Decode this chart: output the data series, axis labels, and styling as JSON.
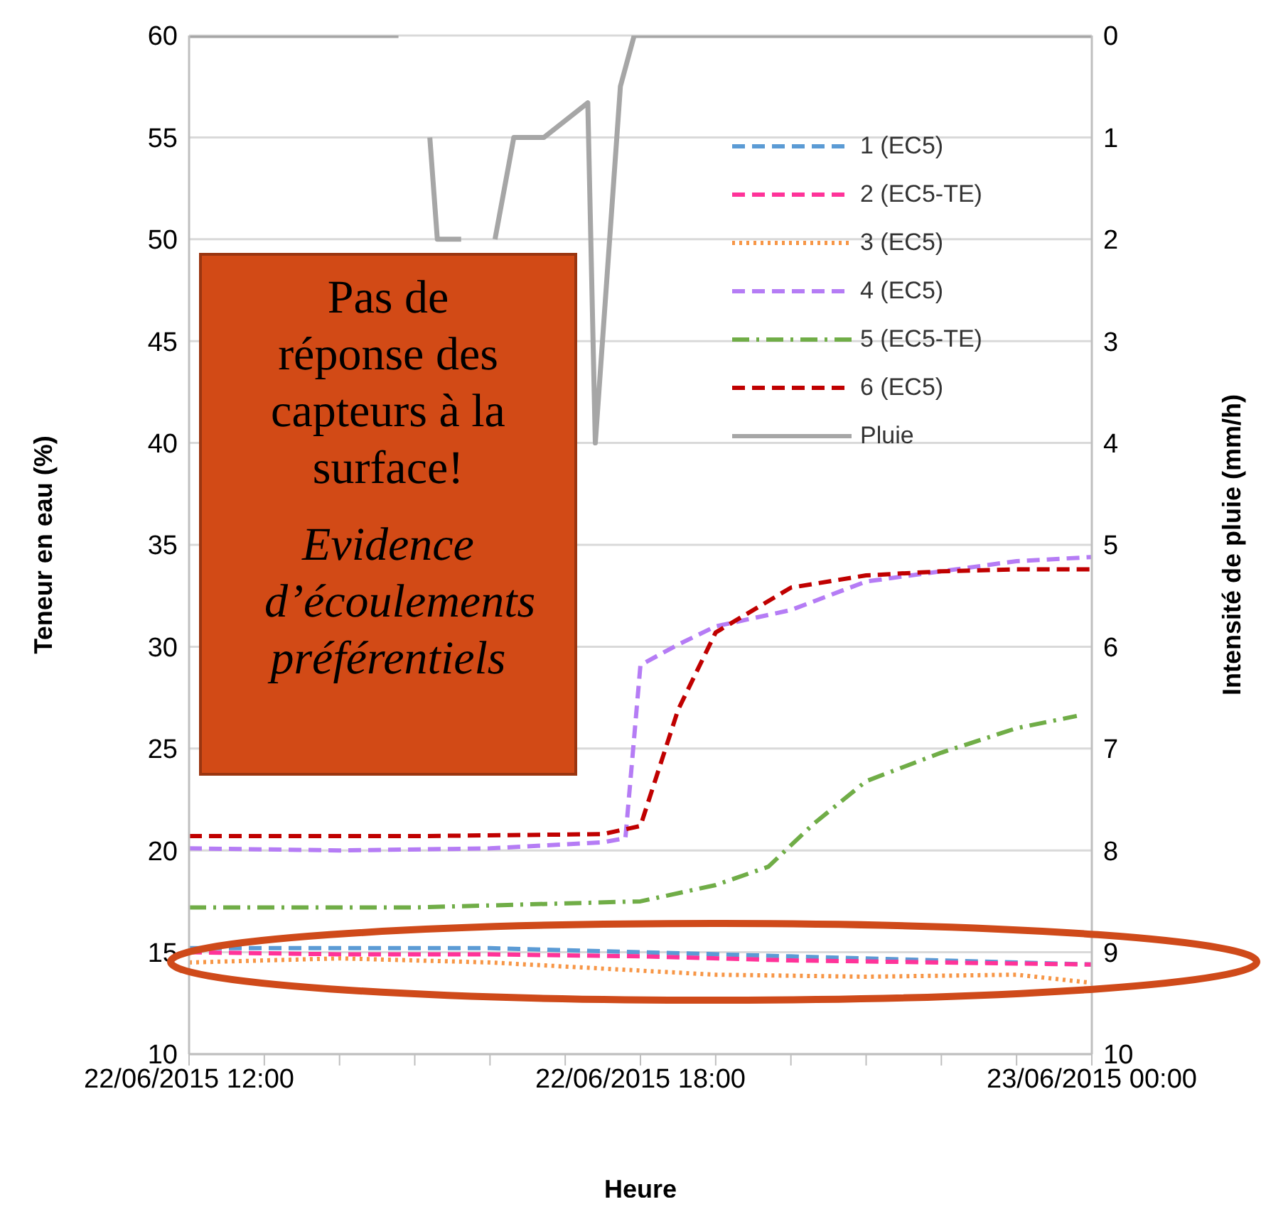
{
  "chart_data": {
    "type": "line",
    "xlabel": "Heure",
    "ylabel": "Teneur en eau (%)",
    "y2label": "Intensité de pluie (mm/h)",
    "xlim": [
      "2015-06-22T12:00",
      "2015-06-23T00:00"
    ],
    "xticks": [
      {
        "value": "2015-06-22T12:00",
        "label": "22/06/2015 12:00"
      },
      {
        "value": "2015-06-22T13:00",
        "label": null
      },
      {
        "value": "2015-06-22T14:00",
        "label": null
      },
      {
        "value": "2015-06-22T15:00",
        "label": null
      },
      {
        "value": "2015-06-22T16:00",
        "label": null
      },
      {
        "value": "2015-06-22T17:00",
        "label": null
      },
      {
        "value": "2015-06-22T18:00",
        "label": "22/06/2015 18:00"
      },
      {
        "value": "2015-06-22T19:00",
        "label": null
      },
      {
        "value": "2015-06-22T20:00",
        "label": null
      },
      {
        "value": "2015-06-22T21:00",
        "label": null
      },
      {
        "value": "2015-06-22T22:00",
        "label": null
      },
      {
        "value": "2015-06-22T23:00",
        "label": null
      },
      {
        "value": "2015-06-23T00:00",
        "label": "23/06/2015 00:00"
      }
    ],
    "ylim": [
      10,
      60
    ],
    "yticks": [
      10,
      15,
      20,
      25,
      30,
      35,
      40,
      45,
      50,
      55,
      60
    ],
    "y2lim": [
      10,
      0
    ],
    "y2ticks": [
      0,
      1,
      2,
      3,
      4,
      5,
      6,
      7,
      8,
      9,
      10
    ],
    "grid": "y",
    "legend": "top right",
    "marker": "none",
    "series": [
      {
        "name": "1 (EC5)",
        "color": "#5b9bd5",
        "line_style": "dashed",
        "x": [
          "2015-06-22T12:00",
          "2015-06-22T14:00",
          "2015-06-22T16:00",
          "2015-06-22T18:00",
          "2015-06-22T20:00",
          "2015-06-22T22:00",
          "2015-06-23T00:00"
        ],
        "values": [
          15.2,
          15.2,
          15.2,
          15.0,
          14.8,
          14.6,
          14.4
        ]
      },
      {
        "name": "2 (EC5-TE)",
        "color": "#ff3399",
        "line_style": "dashed",
        "x": [
          "2015-06-22T12:00",
          "2015-06-22T14:00",
          "2015-06-22T16:00",
          "2015-06-22T18:00",
          "2015-06-22T20:00",
          "2015-06-22T22:00",
          "2015-06-23T00:00"
        ],
        "values": [
          15.0,
          14.9,
          14.9,
          14.8,
          14.6,
          14.5,
          14.4
        ]
      },
      {
        "name": "3 (EC5)",
        "color": "#f79646",
        "line_style": "dotted",
        "x": [
          "2015-06-22T12:00",
          "2015-06-22T14:00",
          "2015-06-22T16:00",
          "2015-06-22T17:00",
          "2015-06-22T19:00",
          "2015-06-22T21:00",
          "2015-06-22T23:00",
          "2015-06-23T00:00"
        ],
        "values": [
          14.5,
          14.7,
          14.5,
          14.3,
          13.9,
          13.8,
          13.9,
          13.5
        ]
      },
      {
        "name": "4 (EC5)",
        "color": "#b57cf5",
        "line_style": "dashed",
        "x": [
          "2015-06-22T12:00",
          "2015-06-22T14:00",
          "2015-06-22T16:00",
          "2015-06-22T17:30",
          "2015-06-22T17:48",
          "2015-06-22T18:00",
          "2015-06-22T18:30",
          "2015-06-22T19:00",
          "2015-06-22T20:00",
          "2015-06-22T21:00",
          "2015-06-22T22:00",
          "2015-06-22T23:00",
          "2015-06-23T00:00"
        ],
        "values": [
          20.1,
          20.0,
          20.1,
          20.4,
          20.6,
          29.1,
          30.1,
          31.0,
          31.8,
          33.2,
          33.7,
          34.2,
          34.4
        ]
      },
      {
        "name": "5 (EC5-TE)",
        "color": "#70ad47",
        "line_style": "dashdot",
        "x": [
          "2015-06-22T12:00",
          "2015-06-22T15:00",
          "2015-06-22T17:00",
          "2015-06-22T18:00",
          "2015-06-22T19:00",
          "2015-06-22T19:42",
          "2015-06-22T20:18",
          "2015-06-22T21:00",
          "2015-06-22T22:00",
          "2015-06-22T23:00",
          "2015-06-22T23:48"
        ],
        "values": [
          17.2,
          17.2,
          17.4,
          17.5,
          18.3,
          19.2,
          21.3,
          23.4,
          24.8,
          26.0,
          26.6
        ]
      },
      {
        "name": "6 (EC5)",
        "color": "#c00000",
        "line_style": "dashed",
        "x": [
          "2015-06-22T12:00",
          "2015-06-22T15:00",
          "2015-06-22T17:30",
          "2015-06-22T18:00",
          "2015-06-22T18:30",
          "2015-06-22T19:00",
          "2015-06-22T20:00",
          "2015-06-22T21:00",
          "2015-06-22T22:00",
          "2015-06-22T23:00",
          "2015-06-23T00:00"
        ],
        "values": [
          20.7,
          20.7,
          20.8,
          21.2,
          26.9,
          30.7,
          32.9,
          33.5,
          33.7,
          33.8,
          33.8
        ]
      },
      {
        "name": "Pluie",
        "color": "#a6a6a6",
        "line_style": "solid",
        "axis": "y2",
        "x": [
          "2015-06-22T12:00",
          "2015-06-22T14:47",
          "2015-06-22T14:52",
          "2015-06-22T15:12",
          "2015-06-22T15:18",
          "2015-06-22T15:37",
          "2015-06-22T15:42",
          "2015-06-22T16:04",
          "2015-06-22T16:19",
          "2015-06-22T16:43",
          "2015-06-22T17:18",
          "2015-06-22T17:24",
          "2015-06-22T17:44",
          "2015-06-22T17:55",
          "2015-06-23T00:00"
        ],
        "values": [
          0,
          0,
          null,
          1,
          2,
          2,
          null,
          2,
          1,
          1,
          0.66,
          4,
          0.5,
          0,
          0
        ]
      }
    ],
    "annotations": [
      "Pas de réponse des capteurs à la surface!",
      "Evidence d’écoulements préférentiels"
    ]
  }
}
